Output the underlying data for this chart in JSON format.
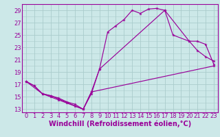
{
  "bg_color": "#cce8e8",
  "grid_color": "#aacccc",
  "line_color": "#990099",
  "marker": "*",
  "marker_size": 3.5,
  "xlabel": "Windchill (Refroidissement éolien,°C)",
  "xlabel_fontsize": 7,
  "tick_fontsize": 6,
  "ymin": 12.5,
  "ymax": 30.0,
  "xmin": -0.5,
  "xmax": 23.5,
  "line1_x": [
    0,
    1,
    2,
    3,
    4,
    5,
    6,
    7,
    8,
    9,
    10,
    11,
    12,
    13,
    14,
    15,
    16,
    17,
    18,
    20,
    21,
    22,
    23
  ],
  "line1_y": [
    17.5,
    16.8,
    15.5,
    15.0,
    14.5,
    14.0,
    13.5,
    13.0,
    15.5,
    19.5,
    25.5,
    26.5,
    27.5,
    29.0,
    28.5,
    29.2,
    29.3,
    29.0,
    25.0,
    24.0,
    22.5,
    21.5,
    20.8
  ],
  "line2_x": [
    0,
    1,
    2,
    3,
    4,
    5,
    6,
    7,
    8,
    9,
    17,
    20,
    21,
    22,
    23
  ],
  "line2_y": [
    17.5,
    16.8,
    15.5,
    15.2,
    14.8,
    14.2,
    13.8,
    13.0,
    15.8,
    19.5,
    29.0,
    24.0,
    24.0,
    23.5,
    20.3
  ],
  "line3_x": [
    0,
    2,
    3,
    7,
    8,
    23
  ],
  "line3_y": [
    17.5,
    15.5,
    15.2,
    13.0,
    15.8,
    20.0
  ]
}
